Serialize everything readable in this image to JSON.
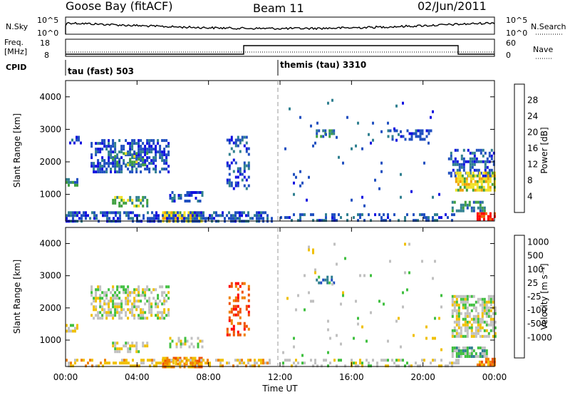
{
  "header": {
    "station": "Goose Bay (fitACF)",
    "beam": "Beam 11",
    "date": "02/Jun/2011"
  },
  "status_panels": {
    "nsky_label": "N.Sky",
    "nsearch_label": "N.Search",
    "nsky_ticks": [
      "10^5",
      "10^0"
    ],
    "nsearch_ticks": [
      "10^5",
      "10^0"
    ],
    "freq_label_line1": "Freq.",
    "freq_label_line2": "[MHz]",
    "freq_ticks": [
      "18",
      "8"
    ],
    "nave_label": "Nave",
    "nave_ticks": [
      "60",
      "0"
    ],
    "cpid_label": "CPID",
    "cpid_segments": [
      {
        "label": "tau (fast) 503",
        "start_ut": 0.0
      },
      {
        "label": "themis (tau) 3310",
        "start_ut": 12.0
      }
    ]
  },
  "colors": {
    "power_scale": [
      "#1010e0",
      "#2050c0",
      "#308090",
      "#40a040",
      "#f0e020",
      "#f0a000",
      "#f06000",
      "#ff0000"
    ],
    "velocity_scale": [
      "#1010e0",
      "#2050c0",
      "#308090",
      "#40c040",
      "#c0c0c0",
      "#f0c000",
      "#f08000",
      "#f05000",
      "#ff0000"
    ]
  },
  "chart_data": [
    {
      "type": "heatmap",
      "name": "power",
      "ylabel": "Slant Range [km]",
      "ylim": [
        180,
        4500
      ],
      "yticks": [
        "1000",
        "2000",
        "3000",
        "4000"
      ],
      "ytick_values": [
        1000,
        2000,
        3000,
        4000
      ],
      "xlim": [
        0,
        24
      ],
      "colorbar_label": "Power [dB]",
      "colorbar_ticks": [
        "4",
        "8",
        "12",
        "16",
        "20",
        "24",
        "28"
      ],
      "colorbar_range": [
        0,
        32
      ],
      "regions": [
        {
          "x0": 1.4,
          "x1": 5.8,
          "y0": 1700,
          "y1": 2700,
          "level": 1,
          "density": 0.55
        },
        {
          "x0": 2.6,
          "x1": 4.6,
          "y0": 1900,
          "y1": 2300,
          "level": 3,
          "density": 0.35
        },
        {
          "x0": 0.0,
          "x1": 0.6,
          "y0": 1300,
          "y1": 1500,
          "level": 2,
          "density": 0.6
        },
        {
          "x0": 0.2,
          "x1": 1.0,
          "y0": 2600,
          "y1": 2800,
          "level": 1,
          "density": 0.4
        },
        {
          "x0": 2.6,
          "x1": 4.6,
          "y0": 600,
          "y1": 950,
          "level": 3,
          "density": 0.5
        },
        {
          "x0": 5.8,
          "x1": 7.6,
          "y0": 750,
          "y1": 1100,
          "level": 1,
          "density": 0.45
        },
        {
          "x0": 5.4,
          "x1": 7.6,
          "y0": 180,
          "y1": 480,
          "level": 4,
          "density": 0.8
        },
        {
          "x0": 0.0,
          "x1": 11.5,
          "y0": 180,
          "y1": 480,
          "level": 1,
          "density": 0.55
        },
        {
          "x0": 9.0,
          "x1": 10.2,
          "y0": 1200,
          "y1": 2800,
          "level": 1,
          "density": 0.35
        },
        {
          "x0": 12.0,
          "x1": 22.0,
          "y0": 180,
          "y1": 420,
          "level": 1,
          "density": 0.35
        },
        {
          "x0": 14.0,
          "x1": 15.0,
          "y0": 2800,
          "y1": 3000,
          "level": 2,
          "density": 0.6
        },
        {
          "x0": 18.0,
          "x1": 20.5,
          "y0": 2700,
          "y1": 3000,
          "level": 1,
          "density": 0.4
        },
        {
          "x0": 21.4,
          "x1": 24.0,
          "y0": 1600,
          "y1": 2400,
          "level": 1,
          "density": 0.45
        },
        {
          "x0": 21.8,
          "x1": 24.0,
          "y0": 1100,
          "y1": 1700,
          "level": 4,
          "density": 0.75
        },
        {
          "x0": 21.6,
          "x1": 23.4,
          "y0": 500,
          "y1": 800,
          "level": 2,
          "density": 0.55
        },
        {
          "x0": 23.0,
          "x1": 24.0,
          "y0": 250,
          "y1": 450,
          "level": 7,
          "density": 0.8
        },
        {
          "x0": 12.0,
          "x1": 21.0,
          "y0": 480,
          "y1": 4200,
          "level": 1,
          "density": 0.015
        }
      ]
    },
    {
      "type": "heatmap",
      "name": "velocity",
      "ylabel": "Slant Range [km]",
      "ylim": [
        180,
        4500
      ],
      "yticks": [
        "1000",
        "2000",
        "3000",
        "4000"
      ],
      "ytick_values": [
        1000,
        2000,
        3000,
        4000
      ],
      "xlim": [
        0,
        24
      ],
      "xlabel": "Time UT",
      "xticks": [
        "00:00",
        "04:00",
        "08:00",
        "12:00",
        "16:00",
        "20:00",
        "00:00"
      ],
      "xtick_values": [
        0,
        4,
        8,
        12,
        16,
        20,
        24
      ],
      "colorbar_label": "Velocity [m s⁻¹]",
      "colorbar_ticks": [
        "1000",
        "500",
        "100",
        "25",
        "-25",
        "-100",
        "-500",
        "-1000"
      ],
      "regions": [
        {
          "x0": 1.4,
          "x1": 5.8,
          "y0": 1700,
          "y1": 2700,
          "level": 4,
          "density": 0.55
        },
        {
          "x0": 0.0,
          "x1": 0.6,
          "y0": 1300,
          "y1": 1500,
          "level": 4,
          "density": 0.6
        },
        {
          "x0": 2.6,
          "x1": 4.6,
          "y0": 600,
          "y1": 950,
          "level": 4,
          "density": 0.5
        },
        {
          "x0": 5.8,
          "x1": 7.6,
          "y0": 750,
          "y1": 1100,
          "level": 4,
          "density": 0.4
        },
        {
          "x0": 5.4,
          "x1": 7.6,
          "y0": 180,
          "y1": 480,
          "level": 6,
          "density": 0.75
        },
        {
          "x0": 0.0,
          "x1": 11.5,
          "y0": 180,
          "y1": 420,
          "level": 5,
          "density": 0.45
        },
        {
          "x0": 9.0,
          "x1": 10.2,
          "y0": 1200,
          "y1": 2800,
          "level": 7,
          "density": 0.3
        },
        {
          "x0": 12.0,
          "x1": 22.0,
          "y0": 180,
          "y1": 420,
          "level": 4,
          "density": 0.3
        },
        {
          "x0": 14.0,
          "x1": 15.0,
          "y0": 2800,
          "y1": 3000,
          "level": 2,
          "density": 0.6
        },
        {
          "x0": 21.6,
          "x1": 24.0,
          "y0": 1100,
          "y1": 2400,
          "level": 4,
          "density": 0.65
        },
        {
          "x0": 21.6,
          "x1": 23.6,
          "y0": 450,
          "y1": 800,
          "level": 3,
          "density": 0.7
        },
        {
          "x0": 23.0,
          "x1": 24.0,
          "y0": 250,
          "y1": 450,
          "level": 6,
          "density": 0.7
        },
        {
          "x0": 12.0,
          "x1": 21.0,
          "y0": 480,
          "y1": 4200,
          "level": 4,
          "density": 0.015
        }
      ]
    }
  ]
}
